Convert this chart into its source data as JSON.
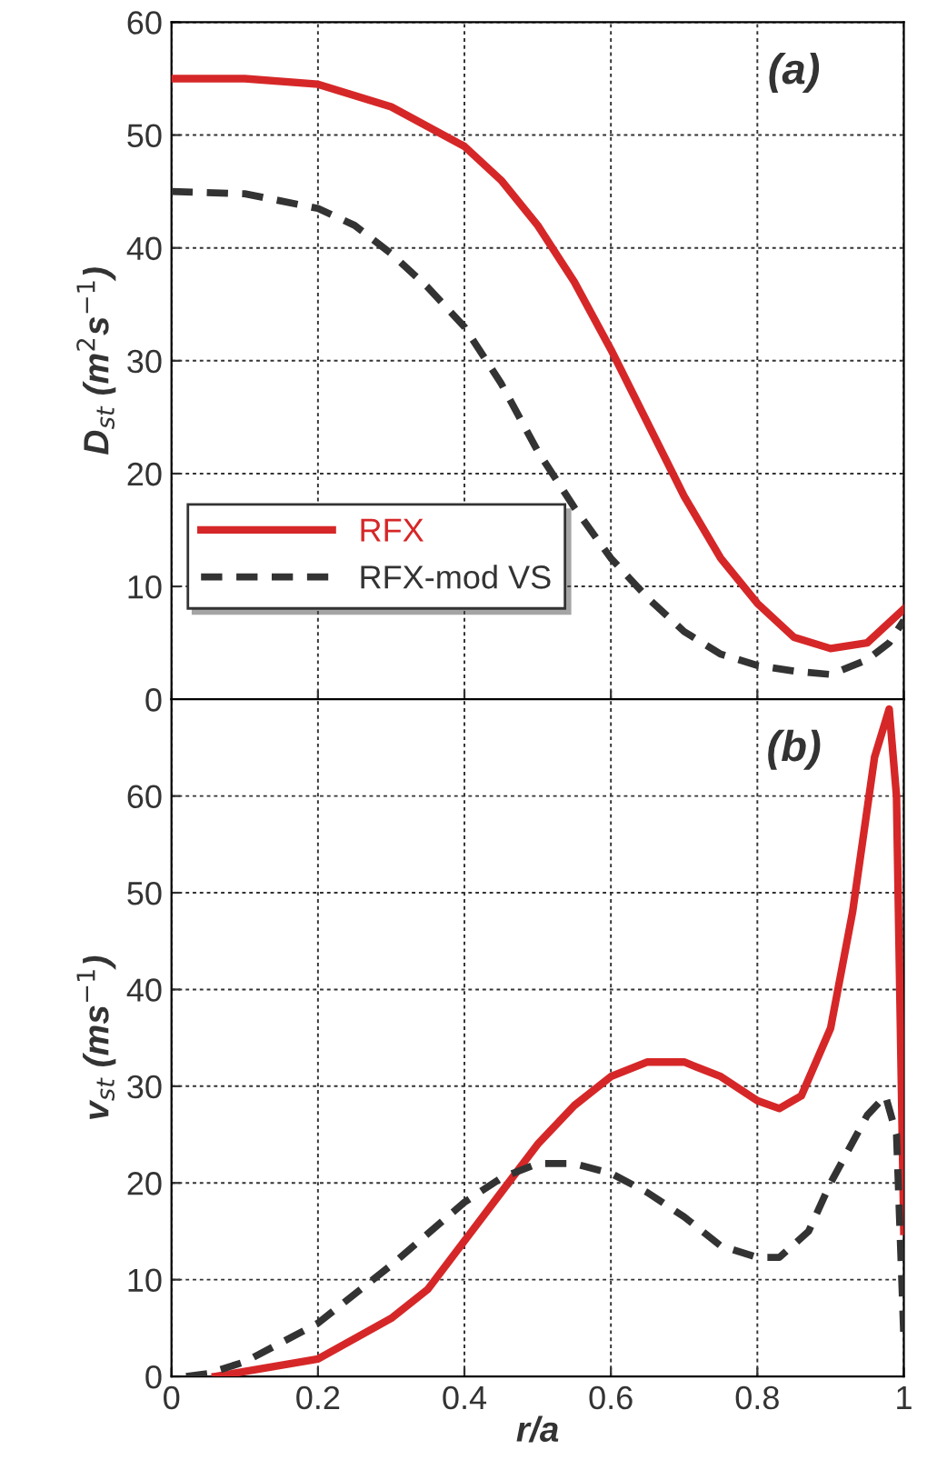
{
  "chart_data": [
    {
      "type": "line",
      "ylabel": "D$_{st}$ (m$^{2}$s$^{−1}$)",
      "annotations": [
        "(a)"
      ],
      "xlim": [
        0,
        1
      ],
      "ylim": [
        0,
        60
      ],
      "xticks": [
        0,
        0.2,
        0.4,
        0.6,
        0.8,
        1
      ],
      "yticks": [
        0,
        10,
        20,
        30,
        40,
        50,
        60
      ],
      "tick_labels": "y",
      "grid": true,
      "legend": "bottom left",
      "x": [
        0,
        0.1,
        0.2,
        0.3,
        0.4,
        0.45,
        0.5,
        0.55,
        0.6,
        0.65,
        0.7,
        0.75,
        0.8,
        0.85,
        0.9,
        0.95,
        1.0
      ],
      "series": [
        {
          "name": "RFX",
          "color": "#d62728",
          "line_style": "solid",
          "values": [
            55,
            55,
            54.5,
            52.5,
            49,
            46,
            42,
            37,
            31,
            24.5,
            18,
            12.5,
            8.5,
            5.5,
            4.5,
            5,
            8
          ]
        },
        {
          "name": "RFX-mod VS",
          "color": "#333333",
          "line_style": "dashed",
          "x": [
            0,
            0.1,
            0.2,
            0.25,
            0.3,
            0.35,
            0.4,
            0.45,
            0.5,
            0.55,
            0.6,
            0.65,
            0.7,
            0.75,
            0.8,
            0.85,
            0.9,
            0.95,
            0.98,
            1.0
          ],
          "values": [
            45,
            44.8,
            43.5,
            42,
            39.5,
            36.5,
            33,
            28,
            22,
            17,
            12.5,
            9,
            6,
            4,
            3,
            2.5,
            2.2,
            3.5,
            5,
            7
          ]
        }
      ]
    },
    {
      "type": "line",
      "ylabel": "v$_{st}$ (ms$^{−1}$)",
      "xlabel": "r/a",
      "annotations": [
        "(b)"
      ],
      "xlim": [
        0,
        1
      ],
      "ylim": [
        0,
        70
      ],
      "xticks": [
        0,
        0.2,
        0.4,
        0.6,
        0.8,
        1
      ],
      "yticks": [
        0,
        10,
        20,
        30,
        40,
        50,
        60
      ],
      "grid": true,
      "series": [
        {
          "color": "#d62728",
          "line_style": "solid",
          "x": [
            0.06,
            0.1,
            0.2,
            0.3,
            0.35,
            0.4,
            0.45,
            0.5,
            0.55,
            0.6,
            0.65,
            0.7,
            0.75,
            0.8,
            0.83,
            0.86,
            0.9,
            0.93,
            0.96,
            0.98,
            0.99,
            1.0
          ],
          "values": [
            0,
            0.5,
            1.8,
            6,
            9,
            14,
            19,
            24,
            28,
            31,
            32.5,
            32.5,
            31,
            28.5,
            27.7,
            29,
            36,
            48,
            64,
            69,
            60,
            15
          ]
        },
        {
          "color": "#333333",
          "line_style": "dashed",
          "x": [
            0.02,
            0.05,
            0.1,
            0.2,
            0.3,
            0.4,
            0.45,
            0.5,
            0.55,
            0.6,
            0.65,
            0.7,
            0.75,
            0.8,
            0.83,
            0.87,
            0.9,
            0.95,
            0.975,
            0.99,
            1.0
          ],
          "values": [
            0,
            0.3,
            1.5,
            5.5,
            11.5,
            18,
            20.5,
            22,
            22,
            21,
            19,
            16.5,
            13.5,
            12.3,
            12.3,
            15,
            20,
            27,
            29,
            25,
            4
          ]
        }
      ]
    }
  ]
}
